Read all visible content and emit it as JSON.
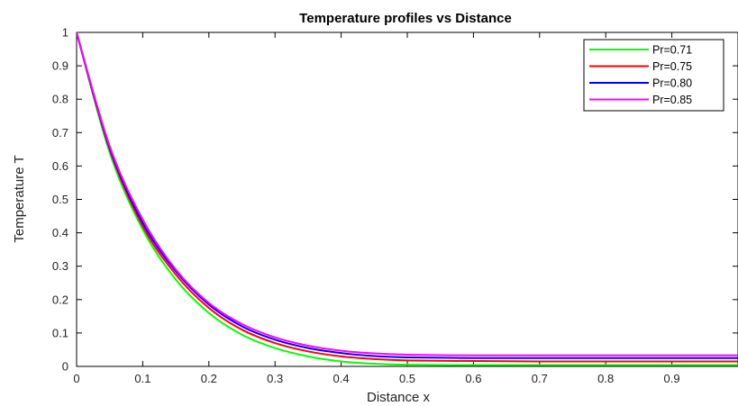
{
  "chart_data": {
    "type": "line",
    "title": "Temperature profiles vs Distance",
    "xlabel": "Distance x",
    "ylabel": "Temperature T",
    "xlim": [
      0,
      1
    ],
    "ylim": [
      0,
      1
    ],
    "xticks": [
      0,
      0.1,
      0.2,
      0.3,
      0.4,
      0.5,
      0.6,
      0.7,
      0.8,
      0.9
    ],
    "yticks": [
      0,
      0.1,
      0.2,
      0.3,
      0.4,
      0.5,
      0.6,
      0.7,
      0.8,
      0.9,
      1
    ],
    "grid": false,
    "legend_position": "top-right",
    "x": [
      0,
      0.05,
      0.1,
      0.15,
      0.2,
      0.25,
      0.3,
      0.35,
      0.4,
      0.45,
      0.5,
      0.6,
      0.7,
      0.8,
      0.9,
      1.0
    ],
    "series": [
      {
        "name": "Pr=0.71",
        "color": "#00ff00",
        "values": [
          1.0,
          0.64,
          0.41,
          0.26,
          0.16,
          0.095,
          0.055,
          0.03,
          0.015,
          0.008,
          0.005,
          0.004,
          0.004,
          0.004,
          0.004,
          0.004
        ]
      },
      {
        "name": "Pr=0.75",
        "color": "#ff0000",
        "values": [
          1.0,
          0.65,
          0.42,
          0.275,
          0.175,
          0.11,
          0.07,
          0.045,
          0.03,
          0.022,
          0.018,
          0.016,
          0.015,
          0.015,
          0.015,
          0.015
        ]
      },
      {
        "name": "Pr=0.80",
        "color": "#0000ff",
        "values": [
          1.0,
          0.655,
          0.43,
          0.285,
          0.185,
          0.12,
          0.08,
          0.055,
          0.04,
          0.031,
          0.027,
          0.025,
          0.025,
          0.025,
          0.025,
          0.025
        ]
      },
      {
        "name": "Pr=0.85",
        "color": "#ff00ff",
        "values": [
          1.0,
          0.66,
          0.44,
          0.29,
          0.19,
          0.127,
          0.087,
          0.062,
          0.047,
          0.039,
          0.035,
          0.033,
          0.033,
          0.033,
          0.033,
          0.033
        ]
      }
    ]
  }
}
